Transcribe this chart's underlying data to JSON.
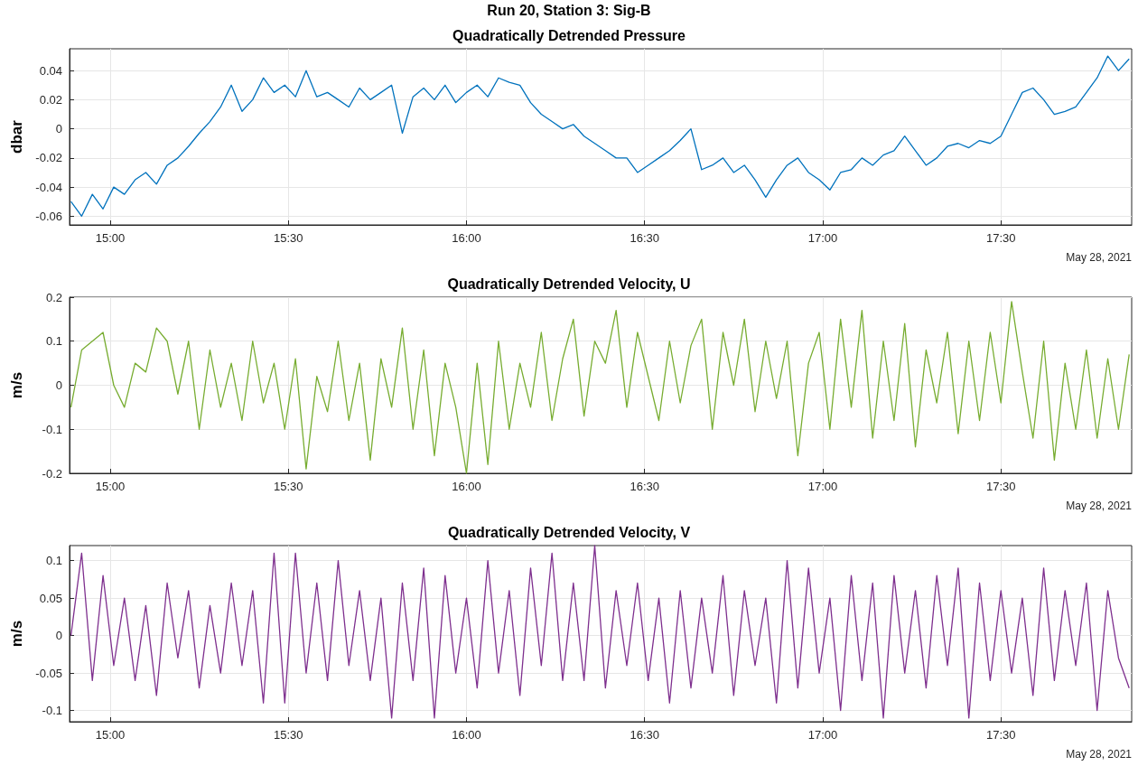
{
  "chart_data": [
    {
      "type": "line",
      "title": "Quadratically Detrended Pressure",
      "ylabel": "dbar",
      "xlabel": "May 28, 2021",
      "annotations": [
        "Run 20, Station 3: Sig-B"
      ],
      "grid": true,
      "xlim": [
        14.886,
        17.867
      ],
      "xticks": [
        {
          "value": 15,
          "label": "15:00"
        },
        {
          "value": 15.5,
          "label": "15:30"
        },
        {
          "value": 16,
          "label": "16:00"
        },
        {
          "value": 16.5,
          "label": "16:30"
        },
        {
          "value": 17,
          "label": "17:00"
        },
        {
          "value": 17.5,
          "label": "17:30"
        }
      ],
      "ylim": [
        -0.066,
        0.055
      ],
      "yticks": [
        -0.06,
        -0.04,
        -0.02,
        0,
        0.02,
        0.04
      ],
      "x": [
        14.89,
        14.92,
        14.95,
        14.98,
        15.01,
        15.04,
        15.07,
        15.1,
        15.13,
        15.16,
        15.19,
        15.22,
        15.25,
        15.28,
        15.31,
        15.34,
        15.37,
        15.4,
        15.43,
        15.46,
        15.49,
        15.52,
        15.55,
        15.58,
        15.61,
        15.64,
        15.67,
        15.7,
        15.73,
        15.76,
        15.79,
        15.82,
        15.85,
        15.88,
        15.91,
        15.94,
        15.97,
        16,
        16.03,
        16.06,
        16.09,
        16.12,
        16.15,
        16.18,
        16.21,
        16.24,
        16.27,
        16.3,
        16.33,
        16.36,
        16.39,
        16.42,
        16.45,
        16.48,
        16.51,
        16.54,
        16.57,
        16.6,
        16.63,
        16.66,
        16.69,
        16.72,
        16.75,
        16.78,
        16.81,
        16.84,
        16.87,
        16.9,
        16.93,
        16.96,
        16.99,
        17.02,
        17.05,
        17.08,
        17.11,
        17.14,
        17.17,
        17.2,
        17.23,
        17.26,
        17.29,
        17.32,
        17.35,
        17.38,
        17.41,
        17.44,
        17.47,
        17.5,
        17.53,
        17.56,
        17.59,
        17.62,
        17.65,
        17.68,
        17.71,
        17.74,
        17.77,
        17.8,
        17.83,
        17.86
      ],
      "series": [
        {
          "color": "#0072bd",
          "values": [
            -0.05,
            -0.06,
            -0.045,
            -0.055,
            -0.04,
            -0.045,
            -0.035,
            -0.03,
            -0.038,
            -0.025,
            -0.02,
            -0.012,
            -0.003,
            0.005,
            0.015,
            0.03,
            0.012,
            0.02,
            0.035,
            0.025,
            0.03,
            0.022,
            0.04,
            0.022,
            0.025,
            0.02,
            0.015,
            0.028,
            0.02,
            0.025,
            0.03,
            -0.003,
            0.022,
            0.028,
            0.02,
            0.03,
            0.018,
            0.025,
            0.03,
            0.022,
            0.035,
            0.032,
            0.03,
            0.018,
            0.01,
            0.005,
            0.0,
            0.003,
            -0.005,
            -0.01,
            -0.015,
            -0.02,
            -0.02,
            -0.03,
            -0.025,
            -0.02,
            -0.015,
            -0.008,
            0.0,
            -0.028,
            -0.025,
            -0.02,
            -0.03,
            -0.025,
            -0.035,
            -0.047,
            -0.035,
            -0.025,
            -0.02,
            -0.03,
            -0.035,
            -0.042,
            -0.03,
            -0.028,
            -0.02,
            -0.025,
            -0.018,
            -0.015,
            -0.005,
            -0.015,
            -0.025,
            -0.02,
            -0.012,
            -0.01,
            -0.013,
            -0.008,
            -0.01,
            -0.005,
            0.01,
            0.025,
            0.028,
            0.02,
            0.01,
            0.012,
            0.015,
            0.025,
            0.035,
            0.05,
            0.04,
            0.048
          ]
        }
      ]
    },
    {
      "type": "line",
      "title": "Quadratically Detrended Velocity, U",
      "ylabel": "m/s",
      "xlabel": "May 28, 2021",
      "grid": true,
      "xlim": [
        14.886,
        17.867
      ],
      "xticks": [
        {
          "value": 15,
          "label": "15:00"
        },
        {
          "value": 15.5,
          "label": "15:30"
        },
        {
          "value": 16,
          "label": "16:00"
        },
        {
          "value": 16.5,
          "label": "16:30"
        },
        {
          "value": 17,
          "label": "17:00"
        },
        {
          "value": 17.5,
          "label": "17:30"
        }
      ],
      "ylim": [
        -0.2,
        0.2
      ],
      "yticks": [
        -0.2,
        -0.1,
        0,
        0.1,
        0.2
      ],
      "x": [
        14.89,
        14.92,
        14.95,
        14.98,
        15.01,
        15.04,
        15.07,
        15.1,
        15.13,
        15.16,
        15.19,
        15.22,
        15.25,
        15.28,
        15.31,
        15.34,
        15.37,
        15.4,
        15.43,
        15.46,
        15.49,
        15.52,
        15.55,
        15.58,
        15.61,
        15.64,
        15.67,
        15.7,
        15.73,
        15.76,
        15.79,
        15.82,
        15.85,
        15.88,
        15.91,
        15.94,
        15.97,
        16,
        16.03,
        16.06,
        16.09,
        16.12,
        16.15,
        16.18,
        16.21,
        16.24,
        16.27,
        16.3,
        16.33,
        16.36,
        16.39,
        16.42,
        16.45,
        16.48,
        16.51,
        16.54,
        16.57,
        16.6,
        16.63,
        16.66,
        16.69,
        16.72,
        16.75,
        16.78,
        16.81,
        16.84,
        16.87,
        16.9,
        16.93,
        16.96,
        16.99,
        17.02,
        17.05,
        17.08,
        17.11,
        17.14,
        17.17,
        17.2,
        17.23,
        17.26,
        17.29,
        17.32,
        17.35,
        17.38,
        17.41,
        17.44,
        17.47,
        17.5,
        17.53,
        17.56,
        17.59,
        17.62,
        17.65,
        17.68,
        17.71,
        17.74,
        17.77,
        17.8,
        17.83,
        17.86
      ],
      "series": [
        {
          "color": "#77ac30",
          "values": [
            -0.05,
            0.08,
            0.1,
            0.12,
            0.0,
            -0.05,
            0.05,
            0.03,
            0.13,
            0.1,
            -0.02,
            0.1,
            -0.1,
            0.08,
            -0.05,
            0.05,
            -0.08,
            0.1,
            -0.04,
            0.05,
            -0.1,
            0.06,
            -0.19,
            0.02,
            -0.06,
            0.1,
            -0.08,
            0.05,
            -0.17,
            0.06,
            -0.05,
            0.13,
            -0.1,
            0.08,
            -0.16,
            0.05,
            -0.05,
            -0.2,
            0.05,
            -0.18,
            0.1,
            -0.1,
            0.05,
            -0.05,
            0.12,
            -0.08,
            0.06,
            0.15,
            -0.07,
            0.1,
            0.05,
            0.17,
            -0.05,
            0.12,
            0.02,
            -0.08,
            0.1,
            -0.04,
            0.09,
            0.15,
            -0.1,
            0.12,
            0.0,
            0.15,
            -0.06,
            0.1,
            -0.03,
            0.1,
            -0.16,
            0.05,
            0.12,
            -0.1,
            0.15,
            -0.05,
            0.17,
            -0.12,
            0.1,
            -0.08,
            0.14,
            -0.14,
            0.08,
            -0.04,
            0.12,
            -0.11,
            0.1,
            -0.08,
            0.12,
            -0.04,
            0.19,
            0.03,
            -0.12,
            0.1,
            -0.17,
            0.05,
            -0.1,
            0.08,
            -0.12,
            0.06,
            -0.1,
            0.07
          ]
        }
      ]
    },
    {
      "type": "line",
      "title": "Quadratically Detrended Velocity, V",
      "ylabel": "m/s",
      "xlabel": "May 28, 2021",
      "grid": true,
      "xlim": [
        14.886,
        17.867
      ],
      "xticks": [
        {
          "value": 15,
          "label": "15:00"
        },
        {
          "value": 15.5,
          "label": "15:30"
        },
        {
          "value": 16,
          "label": "16:00"
        },
        {
          "value": 16.5,
          "label": "16:30"
        },
        {
          "value": 17,
          "label": "17:00"
        },
        {
          "value": 17.5,
          "label": "17:30"
        }
      ],
      "ylim": [
        -0.115,
        0.12
      ],
      "yticks": [
        -0.1,
        -0.05,
        0,
        0.05,
        0.1
      ],
      "x": [
        14.89,
        14.92,
        14.95,
        14.98,
        15.01,
        15.04,
        15.07,
        15.1,
        15.13,
        15.16,
        15.19,
        15.22,
        15.25,
        15.28,
        15.31,
        15.34,
        15.37,
        15.4,
        15.43,
        15.46,
        15.49,
        15.52,
        15.55,
        15.58,
        15.61,
        15.64,
        15.67,
        15.7,
        15.73,
        15.76,
        15.79,
        15.82,
        15.85,
        15.88,
        15.91,
        15.94,
        15.97,
        16,
        16.03,
        16.06,
        16.09,
        16.12,
        16.15,
        16.18,
        16.21,
        16.24,
        16.27,
        16.3,
        16.33,
        16.36,
        16.39,
        16.42,
        16.45,
        16.48,
        16.51,
        16.54,
        16.57,
        16.6,
        16.63,
        16.66,
        16.69,
        16.72,
        16.75,
        16.78,
        16.81,
        16.84,
        16.87,
        16.9,
        16.93,
        16.96,
        16.99,
        17.02,
        17.05,
        17.08,
        17.11,
        17.14,
        17.17,
        17.2,
        17.23,
        17.26,
        17.29,
        17.32,
        17.35,
        17.38,
        17.41,
        17.44,
        17.47,
        17.5,
        17.53,
        17.56,
        17.59,
        17.62,
        17.65,
        17.68,
        17.71,
        17.74,
        17.77,
        17.8,
        17.83,
        17.86
      ],
      "series": [
        {
          "color": "#7e2f8e",
          "values": [
            0.0,
            0.11,
            -0.06,
            0.08,
            -0.04,
            0.05,
            -0.06,
            0.04,
            -0.08,
            0.07,
            -0.03,
            0.06,
            -0.07,
            0.04,
            -0.05,
            0.07,
            -0.04,
            0.06,
            -0.09,
            0.11,
            -0.09,
            0.11,
            -0.05,
            0.07,
            -0.06,
            0.1,
            -0.04,
            0.06,
            -0.06,
            0.05,
            -0.11,
            0.07,
            -0.06,
            0.09,
            -0.11,
            0.08,
            -0.05,
            0.05,
            -0.07,
            0.1,
            -0.05,
            0.06,
            -0.08,
            0.09,
            -0.04,
            0.11,
            -0.06,
            0.07,
            -0.06,
            0.12,
            -0.07,
            0.06,
            -0.04,
            0.07,
            -0.06,
            0.05,
            -0.09,
            0.06,
            -0.07,
            0.05,
            -0.05,
            0.08,
            -0.08,
            0.06,
            -0.04,
            0.05,
            -0.09,
            0.1,
            -0.07,
            0.09,
            -0.05,
            0.05,
            -0.1,
            0.08,
            -0.06,
            0.07,
            -0.11,
            0.08,
            -0.05,
            0.06,
            -0.07,
            0.08,
            -0.04,
            0.09,
            -0.11,
            0.07,
            -0.06,
            0.06,
            -0.05,
            0.05,
            -0.08,
            0.09,
            -0.06,
            0.06,
            -0.04,
            0.07,
            -0.1,
            0.06,
            -0.03,
            -0.07
          ]
        }
      ]
    }
  ]
}
